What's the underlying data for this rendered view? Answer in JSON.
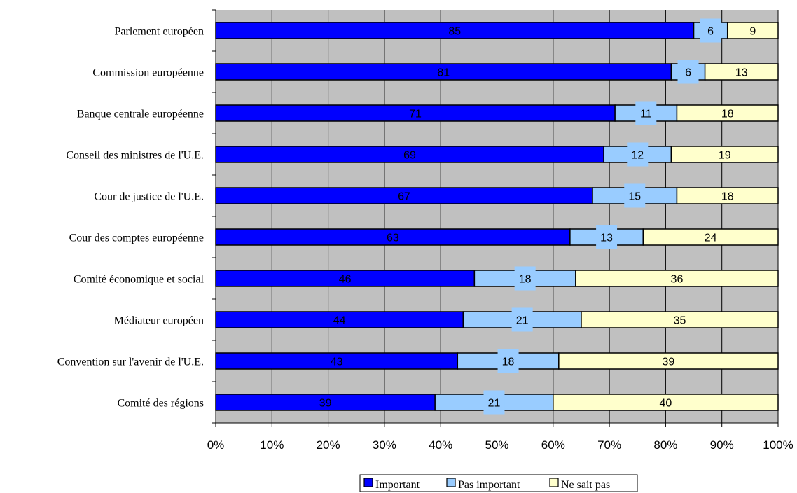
{
  "chart_data": {
    "type": "bar",
    "orientation": "horizontal",
    "stacked": "percent",
    "categories": [
      "Parlement européen",
      "Commission européenne",
      "Banque centrale européenne",
      "Conseil des ministres de l'U.E.",
      "Cour de justice de l'U.E.",
      "Cour des comptes européenne",
      "Comité économique et social",
      "Médiateur européen",
      "Convention sur l'avenir de l'U.E.",
      "Comité des régions"
    ],
    "series": [
      {
        "name": "Important",
        "color": "#0000ff",
        "values": [
          85,
          81,
          71,
          69,
          67,
          63,
          46,
          44,
          43,
          39
        ]
      },
      {
        "name": "Pas important",
        "color": "#99ccff",
        "values": [
          6,
          6,
          11,
          12,
          15,
          13,
          18,
          21,
          18,
          21
        ]
      },
      {
        "name": "Ne sait pas",
        "color": "#ffffcc",
        "values": [
          9,
          13,
          18,
          19,
          18,
          24,
          36,
          35,
          39,
          40
        ]
      }
    ],
    "x_ticks": [
      "0%",
      "10%",
      "20%",
      "30%",
      "40%",
      "50%",
      "60%",
      "70%",
      "80%",
      "90%",
      "100%"
    ],
    "xlim": [
      0,
      100
    ],
    "grid": true,
    "plot_background": "#c0c0c0",
    "legend_position": "bottom-center",
    "title": "",
    "xlabel": "",
    "ylabel": ""
  }
}
